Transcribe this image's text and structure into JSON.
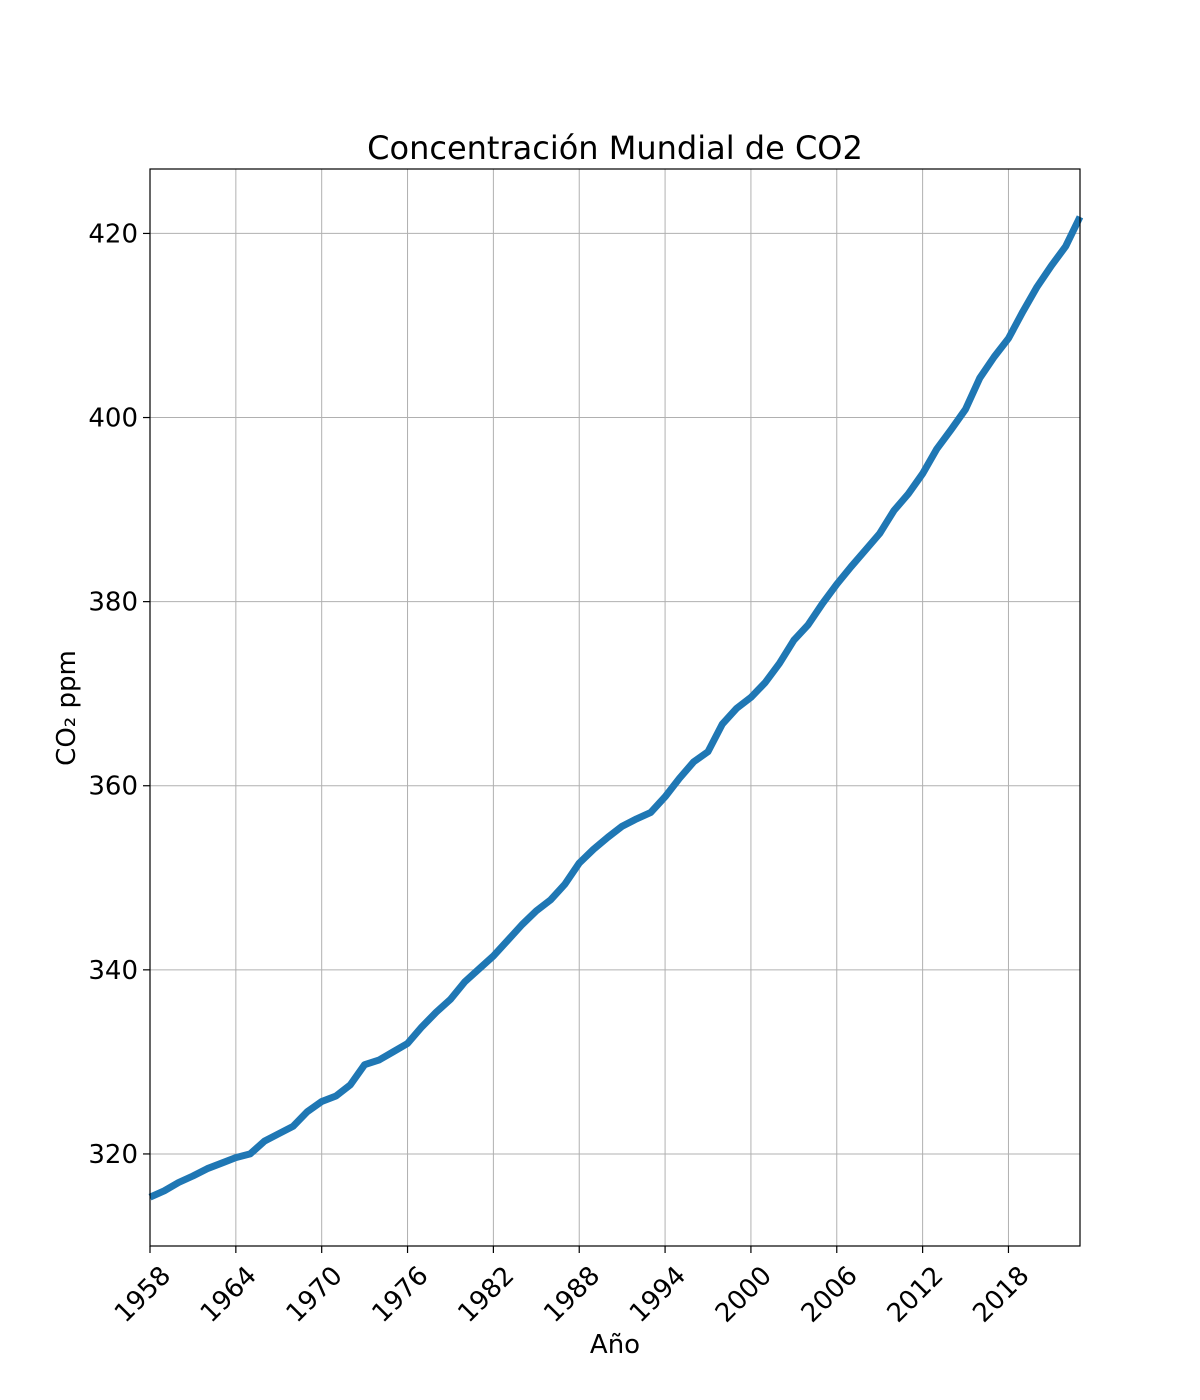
{
  "chart_data": {
    "type": "line",
    "title": "Concentración Mundial de CO2",
    "xlabel": "Año",
    "ylabel": "CO₂ ppm",
    "xlim": [
      1958,
      2023
    ],
    "ylim": [
      310,
      427
    ],
    "x_ticks": [
      "1958",
      "1964",
      "1970",
      "1976",
      "1982",
      "1988",
      "1994",
      "2000",
      "2006",
      "2012",
      "2018"
    ],
    "y_ticks": [
      "320",
      "340",
      "360",
      "380",
      "400",
      "420"
    ],
    "grid": true,
    "line_color": "#1f77b4",
    "series": [
      {
        "x": [
          1958,
          1959,
          1960,
          1961,
          1962,
          1963,
          1964,
          1965,
          1966,
          1967,
          1968,
          1969,
          1970,
          1971,
          1972,
          1973,
          1974,
          1975,
          1976,
          1977,
          1978,
          1979,
          1980,
          1981,
          1982,
          1983,
          1984,
          1985,
          1986,
          1987,
          1988,
          1989,
          1990,
          1991,
          1992,
          1993,
          1994,
          1995,
          1996,
          1997,
          1998,
          1999,
          2000,
          2001,
          2002,
          2003,
          2004,
          2005,
          2006,
          2007,
          2008,
          2009,
          2010,
          2011,
          2012,
          2013,
          2014,
          2015,
          2016,
          2017,
          2018,
          2019,
          2020,
          2021,
          2022,
          2023
        ],
        "values": [
          315.3,
          316.0,
          316.9,
          317.6,
          318.4,
          319.0,
          319.6,
          320.0,
          321.4,
          322.2,
          323.0,
          324.6,
          325.7,
          326.3,
          327.5,
          329.7,
          330.2,
          331.1,
          332.0,
          333.8,
          335.4,
          336.8,
          338.7,
          340.1,
          341.5,
          343.2,
          344.9,
          346.4,
          347.6,
          349.3,
          351.6,
          353.1,
          354.4,
          355.6,
          356.4,
          357.1,
          358.8,
          360.8,
          362.6,
          363.7,
          366.7,
          368.4,
          369.6,
          371.2,
          373.3,
          375.8,
          377.5,
          379.8,
          381.9,
          383.8,
          385.6,
          387.4,
          389.9,
          391.7,
          393.9,
          396.6,
          398.7,
          400.9,
          404.3,
          406.6,
          408.6,
          411.5,
          414.2,
          416.5,
          418.6,
          421.8
        ]
      }
    ]
  }
}
